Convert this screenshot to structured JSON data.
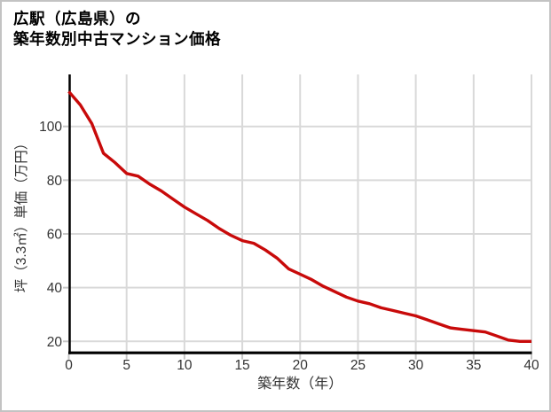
{
  "title": {
    "line1": "広駅（広島県）の",
    "line2": "築年数別中古マンション価格"
  },
  "chart_data": {
    "type": "line",
    "title": "広駅（広島県）の築年数別中古マンション価格",
    "xlabel": "築年数（年）",
    "ylabel": "坪（3.3㎡）単価（万円）",
    "x": [
      0,
      1,
      2,
      3,
      4,
      5,
      6,
      7,
      8,
      9,
      10,
      11,
      12,
      13,
      14,
      15,
      16,
      17,
      18,
      19,
      20,
      21,
      22,
      23,
      24,
      25,
      26,
      27,
      28,
      29,
      30,
      31,
      32,
      33,
      34,
      35,
      36,
      37,
      38,
      39,
      40
    ],
    "values": [
      113,
      108,
      101,
      90,
      86.5,
      82.5,
      81.5,
      78.5,
      76,
      73,
      70,
      67.5,
      65,
      62,
      59.5,
      57.5,
      56.5,
      54,
      51,
      47,
      45,
      43,
      40.5,
      38.5,
      36.5,
      35,
      34,
      32.5,
      31.5,
      30.5,
      29.5,
      28,
      26.5,
      25,
      24.5,
      24,
      23.5,
      22,
      20.5,
      20,
      20
    ],
    "x_ticks": [
      0,
      5,
      10,
      15,
      20,
      25,
      30,
      35,
      40
    ],
    "y_ticks": [
      20,
      40,
      60,
      80,
      100
    ],
    "xlim": [
      0,
      40
    ],
    "ylim": [
      15.7,
      119.2
    ],
    "grid": true,
    "legend": "none",
    "colors": {
      "line": "#c80a0a",
      "grid": "#d9d9d9",
      "tick": "#c6c6c6",
      "axis": "#000000",
      "tick_label": "#333333",
      "axis_label": "#333333"
    }
  }
}
